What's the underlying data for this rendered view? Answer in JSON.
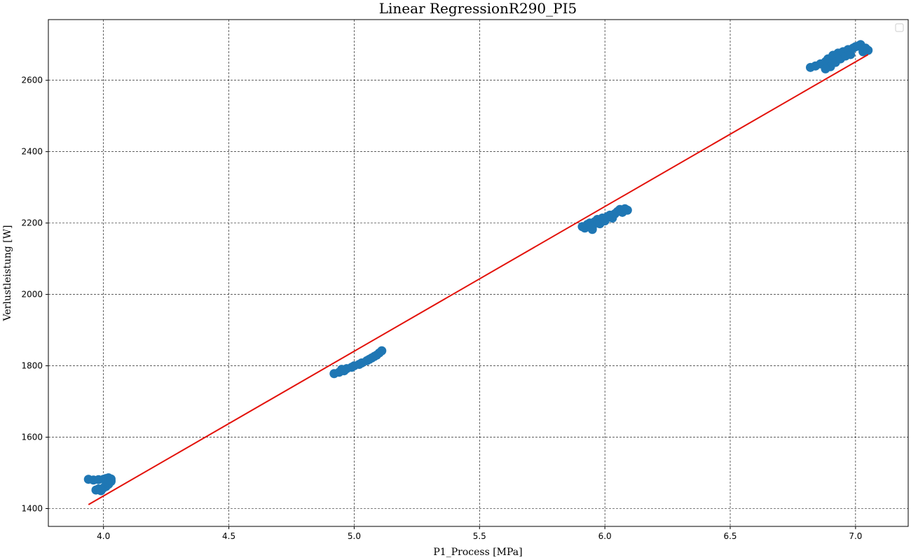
{
  "chart_data": {
    "type": "scatter",
    "title": "Linear RegressionR290_PI5",
    "xlabel": "P1_Process [MPa]",
    "ylabel": "Verlustleistung [W]",
    "xlim": [
      3.78,
      7.21
    ],
    "ylim": [
      1350,
      2770
    ],
    "x_ticks": [
      4.0,
      4.5,
      5.0,
      5.5,
      6.0,
      6.5,
      7.0
    ],
    "x_tick_labels": [
      "4.0",
      "4.5",
      "5.0",
      "5.5",
      "6.0",
      "6.5",
      "7.0"
    ],
    "y_ticks": [
      1400,
      1600,
      1800,
      2000,
      2200,
      2400,
      2600
    ],
    "y_tick_labels": [
      "1400",
      "1600",
      "1800",
      "2000",
      "2200",
      "2400",
      "2600"
    ],
    "grid": true,
    "legend": {
      "placement": "top-right",
      "entries": []
    },
    "colors": {
      "scatter": "#1f77b4",
      "regression": "#e3120b"
    },
    "series": [
      {
        "kind": "scatter",
        "points": [
          [
            3.94,
            1482
          ],
          [
            3.96,
            1480
          ],
          [
            3.98,
            1481
          ],
          [
            4.0,
            1482
          ],
          [
            4.01,
            1484
          ],
          [
            4.02,
            1486
          ],
          [
            4.03,
            1483
          ],
          [
            4.03,
            1478
          ],
          [
            3.97,
            1452
          ],
          [
            3.98,
            1455
          ],
          [
            4.0,
            1458
          ],
          [
            4.01,
            1462
          ],
          [
            4.02,
            1468
          ],
          [
            4.02,
            1474
          ],
          [
            4.03,
            1476
          ],
          [
            3.99,
            1450
          ],
          [
            4.92,
            1778
          ],
          [
            4.94,
            1782
          ],
          [
            4.96,
            1786
          ],
          [
            4.97,
            1792
          ],
          [
            4.99,
            1796
          ],
          [
            5.0,
            1800
          ],
          [
            5.02,
            1804
          ],
          [
            5.03,
            1808
          ],
          [
            5.05,
            1814
          ],
          [
            5.06,
            1818
          ],
          [
            5.07,
            1822
          ],
          [
            5.08,
            1826
          ],
          [
            5.09,
            1830
          ],
          [
            5.1,
            1836
          ],
          [
            5.11,
            1842
          ],
          [
            4.95,
            1790
          ],
          [
            5.91,
            2190
          ],
          [
            5.92,
            2186
          ],
          [
            5.93,
            2196
          ],
          [
            5.94,
            2200
          ],
          [
            5.95,
            2188
          ],
          [
            5.96,
            2204
          ],
          [
            5.97,
            2210
          ],
          [
            5.98,
            2198
          ],
          [
            5.99,
            2214
          ],
          [
            6.0,
            2206
          ],
          [
            6.01,
            2218
          ],
          [
            6.02,
            2222
          ],
          [
            6.03,
            2214
          ],
          [
            6.04,
            2226
          ],
          [
            6.05,
            2232
          ],
          [
            6.06,
            2238
          ],
          [
            6.07,
            2230
          ],
          [
            6.08,
            2240
          ],
          [
            6.09,
            2236
          ],
          [
            5.95,
            2182
          ],
          [
            6.82,
            2636
          ],
          [
            6.84,
            2640
          ],
          [
            6.86,
            2646
          ],
          [
            6.88,
            2652
          ],
          [
            6.89,
            2660
          ],
          [
            6.9,
            2638
          ],
          [
            6.91,
            2670
          ],
          [
            6.92,
            2650
          ],
          [
            6.93,
            2676
          ],
          [
            6.94,
            2660
          ],
          [
            6.95,
            2680
          ],
          [
            6.96,
            2668
          ],
          [
            6.97,
            2686
          ],
          [
            6.98,
            2672
          ],
          [
            6.99,
            2690
          ],
          [
            7.0,
            2694
          ],
          [
            7.01,
            2696
          ],
          [
            7.02,
            2700
          ],
          [
            7.03,
            2680
          ],
          [
            7.04,
            2690
          ],
          [
            7.05,
            2684
          ],
          [
            6.88,
            2632
          ]
        ]
      },
      {
        "kind": "line",
        "points": [
          [
            3.94,
            1411
          ],
          [
            7.05,
            2672
          ]
        ]
      }
    ]
  }
}
